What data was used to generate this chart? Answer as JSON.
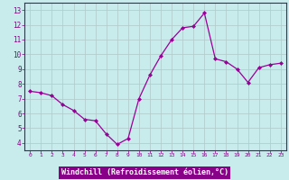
{
  "x": [
    0,
    1,
    2,
    3,
    4,
    5,
    6,
    7,
    8,
    9,
    10,
    11,
    12,
    13,
    14,
    15,
    16,
    17,
    18,
    19,
    20,
    21,
    22,
    23
  ],
  "y": [
    7.5,
    7.4,
    7.2,
    6.6,
    6.2,
    5.6,
    5.5,
    4.6,
    3.9,
    4.3,
    7.0,
    8.6,
    9.9,
    11.0,
    11.8,
    11.9,
    12.8,
    9.7,
    9.5,
    9.0,
    8.1,
    9.1,
    9.3,
    9.4
  ],
  "line_color": "#990099",
  "marker": "D",
  "marker_size": 2.0,
  "bg_color": "#c8ecec",
  "grid_color": "#b0c8c8",
  "xlabel": "Windchill (Refroidissement éolien,°C)",
  "xlabel_color": "#ffffff",
  "xlabel_bg": "#880088",
  "xlim": [
    -0.5,
    23.5
  ],
  "ylim": [
    3.5,
    13.5
  ],
  "yticks": [
    4,
    5,
    6,
    7,
    8,
    9,
    10,
    11,
    12,
    13
  ],
  "xticks": [
    0,
    1,
    2,
    3,
    4,
    5,
    6,
    7,
    8,
    9,
    10,
    11,
    12,
    13,
    14,
    15,
    16,
    17,
    18,
    19,
    20,
    21,
    22,
    23
  ],
  "tick_color": "#880088",
  "spine_color": "#880088"
}
